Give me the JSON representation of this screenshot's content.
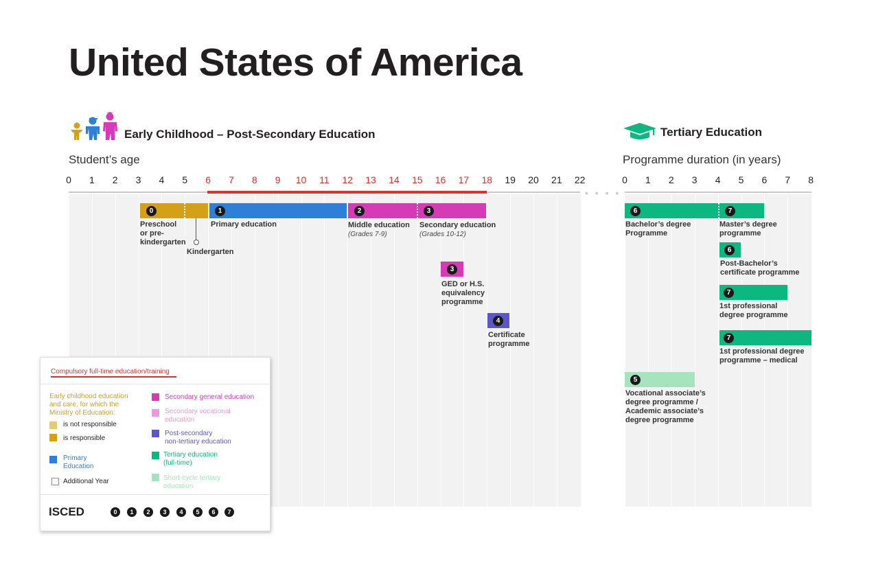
{
  "title": "United States of America",
  "left_section": {
    "title": "Early Childhood – Post-Secondary Education",
    "axis_title": "Student’s age",
    "ticks": [
      "0",
      "1",
      "2",
      "3",
      "4",
      "5",
      "6",
      "7",
      "8",
      "9",
      "10",
      "11",
      "12",
      "13",
      "14",
      "15",
      "16",
      "17",
      "18",
      "19",
      "20",
      "21",
      "22"
    ]
  },
  "right_section": {
    "title": "Tertiary Education",
    "axis_title": "Programme duration (in years)",
    "ticks": [
      "0",
      "1",
      "2",
      "3",
      "4",
      "5",
      "6",
      "7",
      "8"
    ]
  },
  "colors": {
    "compulsory": "#d8332f",
    "ecec_not_responsible": "#e8c97a",
    "ecec_responsible": "#d4a017",
    "primary": "#2e7fd8",
    "secondary_general": "#d63ab4",
    "secondary_vocational": "#ea9ad6",
    "post_secondary": "#5b57c9",
    "tertiary": "#0cb87f",
    "short_cycle": "#a6e4be"
  },
  "programmes": {
    "preschool": {
      "isced": "0",
      "label": "Preschool\nor pre-\nkindergarten"
    },
    "kindergarten": {
      "label": "Kindergarten"
    },
    "primary": {
      "isced": "1",
      "label": "Primary education"
    },
    "middle": {
      "isced": "2",
      "label": "Middle education",
      "sub": "(Grades 7-9)"
    },
    "secondary": {
      "isced": "3",
      "label": "Secondary education",
      "sub": "(Grades 10-12)"
    },
    "ged": {
      "isced": "3",
      "label": "GED or H.S.\nequivalency\nprogramme"
    },
    "certificate": {
      "isced": "4",
      "label": "Certificate\nprogramme"
    },
    "bachelor": {
      "isced": "6",
      "label": "Bachelor’s degree\nProgramme"
    },
    "master": {
      "isced": "7",
      "label": "Master’s degree\nprogramme"
    },
    "post_bachelor": {
      "isced": "6",
      "label": "Post-Bachelor’s\ncertificate programme"
    },
    "first_prof": {
      "isced": "7",
      "label": "1st professional\ndegree programme"
    },
    "first_prof_med": {
      "isced": "7",
      "label": "1st professional degree\nprogramme – medical"
    },
    "associate": {
      "isced": "5",
      "label": "Vocational associate’s\ndegree programme /\nAcademic associate’s\ndegree programme"
    }
  },
  "legend": {
    "compulsory": "Compulsory full-time education/training",
    "ecec_heading": "Early childhood education\nand care, for which the\nMinistry of Education:",
    "not_responsible": "is not responsible",
    "responsible": "is responsible",
    "primary": "Primary\nEducation",
    "additional_year": "Additional Year",
    "secondary_general": "Secondary general education",
    "secondary_vocational": "Secondary vocational\neducation",
    "post_secondary": "Post-secondary\nnon-tertiary education",
    "tertiary": "Tertiary education\n(full-time)",
    "short_cycle": "Short-cycle tertiary\neducation",
    "isced_label": "ISCED",
    "isced_levels": [
      "0",
      "1",
      "2",
      "3",
      "4",
      "5",
      "6",
      "7"
    ]
  }
}
